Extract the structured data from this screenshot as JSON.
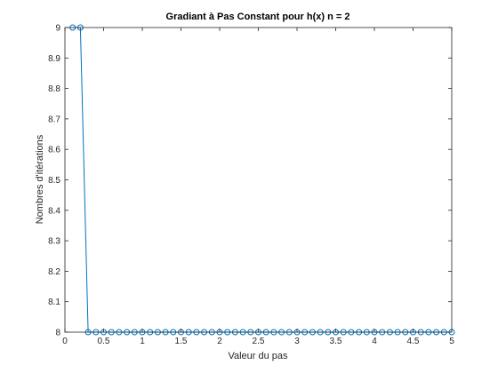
{
  "chart_data": {
    "type": "line",
    "title": "Gradiant à Pas Constant pour h(x) n = 2",
    "xlabel": "Valeur du pas",
    "ylabel": "Nombres d'itérations",
    "xlim": [
      0,
      5
    ],
    "ylim": [
      8,
      9
    ],
    "xticks": [
      0,
      0.5,
      1,
      1.5,
      2,
      2.5,
      3,
      3.5,
      4,
      4.5,
      5
    ],
    "xtick_labels": [
      "0",
      "0.5",
      "1",
      "1.5",
      "2",
      "2.5",
      "3",
      "3.5",
      "4",
      "4.5",
      "5"
    ],
    "yticks": [
      8,
      8.1,
      8.2,
      8.3,
      8.4,
      8.5,
      8.6,
      8.7,
      8.8,
      8.9,
      9
    ],
    "ytick_labels": [
      "8",
      "8.1",
      "8.2",
      "8.3",
      "8.4",
      "8.5",
      "8.6",
      "8.7",
      "8.8",
      "8.9",
      "9"
    ],
    "grid": false,
    "marker": "circle",
    "color": "#0072bd",
    "series": [
      {
        "x": [
          0.1,
          0.2,
          0.3,
          0.4,
          0.5,
          0.6,
          0.7,
          0.8,
          0.9,
          1.0,
          1.1,
          1.2,
          1.3,
          1.4,
          1.5,
          1.6,
          1.7,
          1.8,
          1.9,
          2.0,
          2.1,
          2.2,
          2.3,
          2.4,
          2.5,
          2.6,
          2.7,
          2.8,
          2.9,
          3.0,
          3.1,
          3.2,
          3.3,
          3.4,
          3.5,
          3.6,
          3.7,
          3.8,
          3.9,
          4.0,
          4.1,
          4.2,
          4.3,
          4.4,
          4.5,
          4.6,
          4.7,
          4.8,
          4.9,
          5.0
        ],
        "y": [
          9,
          9,
          8,
          8,
          8,
          8,
          8,
          8,
          8,
          8,
          8,
          8,
          8,
          8,
          8,
          8,
          8,
          8,
          8,
          8,
          8,
          8,
          8,
          8,
          8,
          8,
          8,
          8,
          8,
          8,
          8,
          8,
          8,
          8,
          8,
          8,
          8,
          8,
          8,
          8,
          8,
          8,
          8,
          8,
          8,
          8,
          8,
          8,
          8,
          8
        ]
      }
    ]
  }
}
